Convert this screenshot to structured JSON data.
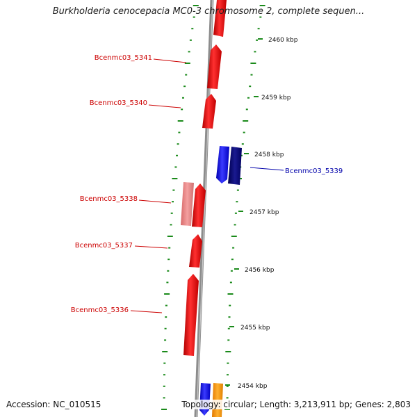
{
  "title": "Burkholderia cenocepacia MC0-3 chromosome 2, complete sequen...",
  "footer": {
    "accession": "Accession: NC_010515",
    "summary": "Topology: circular; Length: 3,213,911 bp; Genes: 2,803"
  },
  "colors": {
    "forward_gene": "#ee1111",
    "forward_gene_light": "#ee8080",
    "reverse_gene": "#1a1aee",
    "reverse_gene_dark": "#0a0a80",
    "other_gene": "#ffa010",
    "backbone": "#8c8c8c",
    "tick": "#1a8a1a",
    "gene_label_forward": "#cc0000",
    "gene_label_reverse": "#0000aa"
  },
  "scale_labels": [
    "2460 kbp",
    "2459 kbp",
    "2458 kbp",
    "2457 kbp",
    "2456 kbp",
    "2455 kbp",
    "2454 kbp"
  ],
  "gene_labels": [
    {
      "text": "Bcenmc03_5341",
      "strand": "forward"
    },
    {
      "text": "Bcenmc03_5340",
      "strand": "forward"
    },
    {
      "text": "Bcenmc03_5339",
      "strand": "reverse"
    },
    {
      "text": "Bcenmc03_5338",
      "strand": "forward"
    },
    {
      "text": "Bcenmc03_5337",
      "strand": "forward"
    },
    {
      "text": "Bcenmc03_5336",
      "strand": "forward"
    }
  ]
}
